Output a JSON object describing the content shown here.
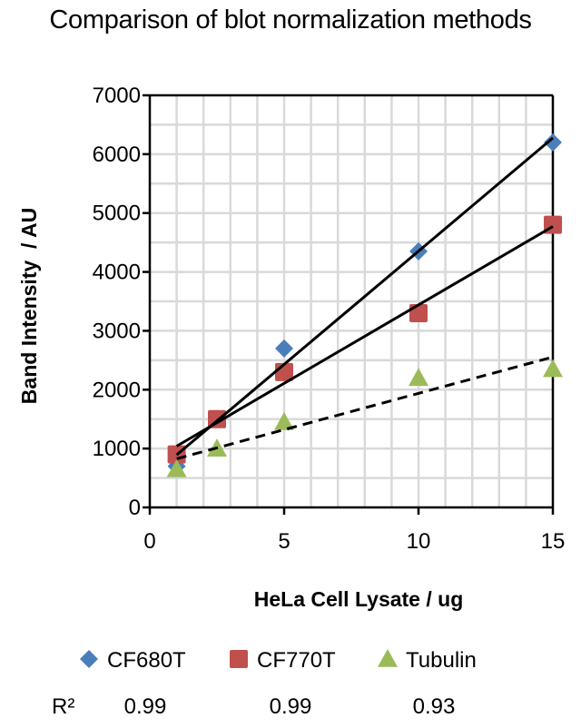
{
  "chart_data": {
    "type": "scatter",
    "title": "Comparison of blot normalization methods",
    "xlabel": "HeLa Cell Lysate / ug",
    "ylabel": "Band Intensity  / AU",
    "xlim": [
      0,
      15
    ],
    "ylim": [
      0,
      7000
    ],
    "xticks": [
      0,
      5,
      10,
      15
    ],
    "yticks": [
      0,
      1000,
      2000,
      3000,
      4000,
      5000,
      6000,
      7000
    ],
    "grid": true,
    "legend_position": "bottom",
    "series": [
      {
        "name": "CF680T",
        "marker": "diamond",
        "color": "#4a7ebb",
        "trendline": "solid",
        "r2_label": "0.99",
        "x": [
          1,
          5,
          10,
          15
        ],
        "y": [
          700,
          2700,
          4350,
          6200
        ]
      },
      {
        "name": "CF770T",
        "marker": "square",
        "color": "#c0504d",
        "trendline": "solid",
        "r2_label": "0.99",
        "x": [
          1,
          2.5,
          5,
          10,
          15
        ],
        "y": [
          900,
          1500,
          2300,
          3300,
          4800
        ]
      },
      {
        "name": "Tubulin",
        "marker": "triangle",
        "color": "#9bbb59",
        "trendline": "dashed",
        "r2_label": "0.93",
        "x": [
          1,
          2.5,
          5,
          10,
          15
        ],
        "y": [
          650,
          1000,
          1450,
          2200,
          2350
        ]
      }
    ],
    "r2_prefix": "R²"
  }
}
